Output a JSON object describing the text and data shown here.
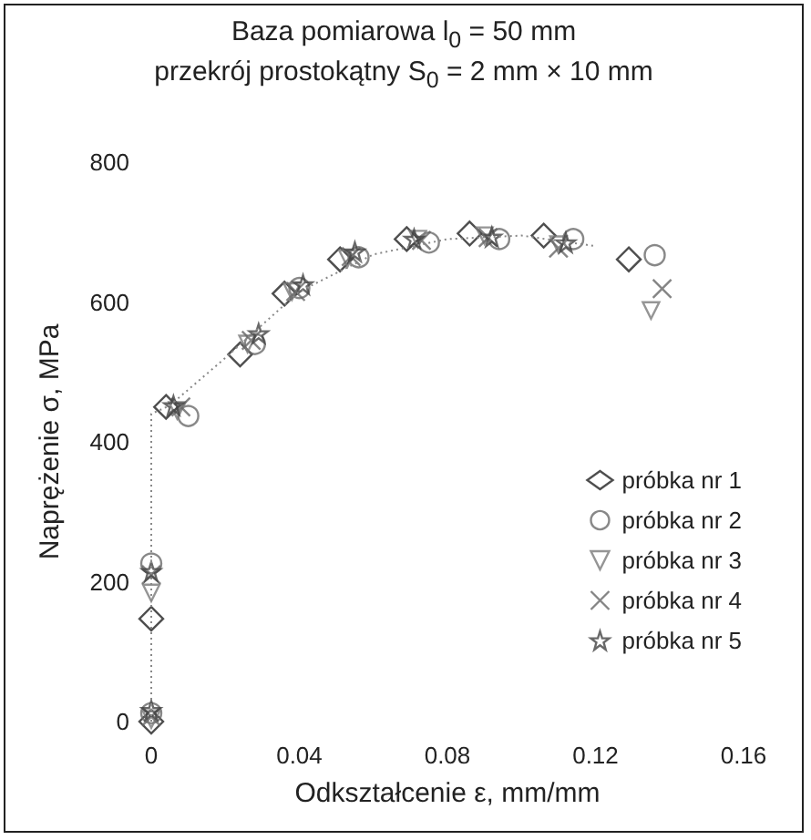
{
  "chart_data": {
    "type": "scatter",
    "title": "Baza pomiarowa l$_{0}$ = 50 mm\nprzekrój prostokątny S$_{0}$ = 2 mm × 10 mm",
    "xlabel": "Odkształcenie ε, mm/mm",
    "ylabel": "Naprężenie σ, MPa",
    "xlim": [
      0,
      0.16
    ],
    "xticks": [
      0,
      0.04,
      0.08,
      0.12,
      0.16
    ],
    "ylim": [
      0,
      800
    ],
    "yticks": [
      0,
      200,
      400,
      600,
      800
    ],
    "grid": false,
    "legend": "bottom right",
    "series": [
      {
        "name": "próbka nr 1",
        "marker": "diamond",
        "color": "#222222",
        "x": [
          0,
          0,
          0.004,
          0.024,
          0.036,
          0.051,
          0.069,
          0.086,
          0.106,
          0.129
        ],
        "values": [
          0,
          147,
          450,
          525,
          612,
          661,
          690,
          698,
          695,
          661
        ]
      },
      {
        "name": "próbka nr 2",
        "marker": "circle",
        "color": "#6a6a6a",
        "x": [
          0,
          0,
          0.01,
          0.028,
          0.04,
          0.056,
          0.075,
          0.094,
          0.114,
          0.136
        ],
        "values": [
          12,
          226,
          437,
          540,
          620,
          664,
          685,
          690,
          690,
          667
        ]
      },
      {
        "name": "próbka nr 3",
        "marker": "triangle",
        "color": "#7a7a7a",
        "x": [
          0,
          0,
          0.007,
          0.026,
          0.038,
          0.053,
          0.072,
          0.09,
          0.11,
          0.135
        ],
        "values": [
          3,
          184,
          445,
          540,
          615,
          662,
          690,
          695,
          682,
          588
        ]
      },
      {
        "name": "próbka nr 4",
        "marker": "cross",
        "color": "#666666",
        "x": [
          0,
          0,
          0.008,
          0.027,
          0.039,
          0.054,
          0.073,
          0.091,
          0.11,
          0.138
        ],
        "values": [
          7,
          210,
          450,
          545,
          615,
          665,
          688,
          692,
          677,
          619
        ]
      },
      {
        "name": "próbka nr 5",
        "marker": "star",
        "color": "#444444",
        "x": [
          0,
          0,
          0.006,
          0.029,
          0.041,
          0.055,
          0.071,
          0.092,
          0.112
        ],
        "values": [
          16,
          215,
          452,
          555,
          625,
          672,
          690,
          693,
          685
        ]
      },
      {
        "type": "line",
        "line_style": "dotted",
        "marker": "none",
        "color": "#888888",
        "x": [
          0,
          0,
          0.005,
          0.02,
          0.04,
          0.06,
          0.08,
          0.1,
          0.12
        ],
        "values": [
          0,
          440,
          452,
          520,
          615,
          668,
          690,
          695,
          680
        ]
      }
    ]
  }
}
